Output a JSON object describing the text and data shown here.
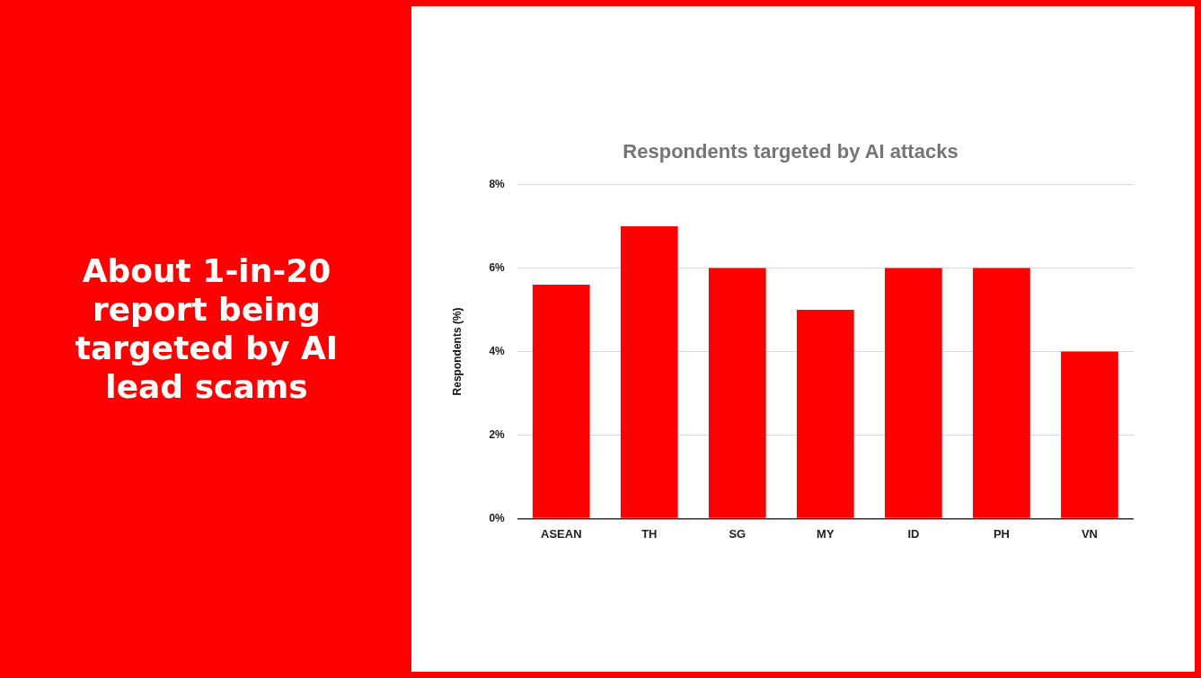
{
  "chart_data": {
    "type": "bar",
    "title": "Respondents targeted by AI attacks",
    "ylabel": "Respondents (%)",
    "categories": [
      "ASEAN",
      "TH",
      "SG",
      "MY",
      "ID",
      "PH",
      "VN"
    ],
    "values": [
      5.6,
      7,
      6,
      5,
      6,
      6,
      4
    ],
    "color": "#ff0000",
    "ylim": [
      0,
      8
    ],
    "yticks": [
      {
        "value": 0,
        "label": "0%"
      },
      {
        "value": 2,
        "label": "2%"
      },
      {
        "value": 4,
        "label": "4%"
      },
      {
        "value": 6,
        "label": "6%"
      },
      {
        "value": 8,
        "label": "8%"
      }
    ],
    "grid": "y",
    "legend": false,
    "annotations": [
      "About 1-in-20 report being targeted by AI lead scams"
    ]
  }
}
